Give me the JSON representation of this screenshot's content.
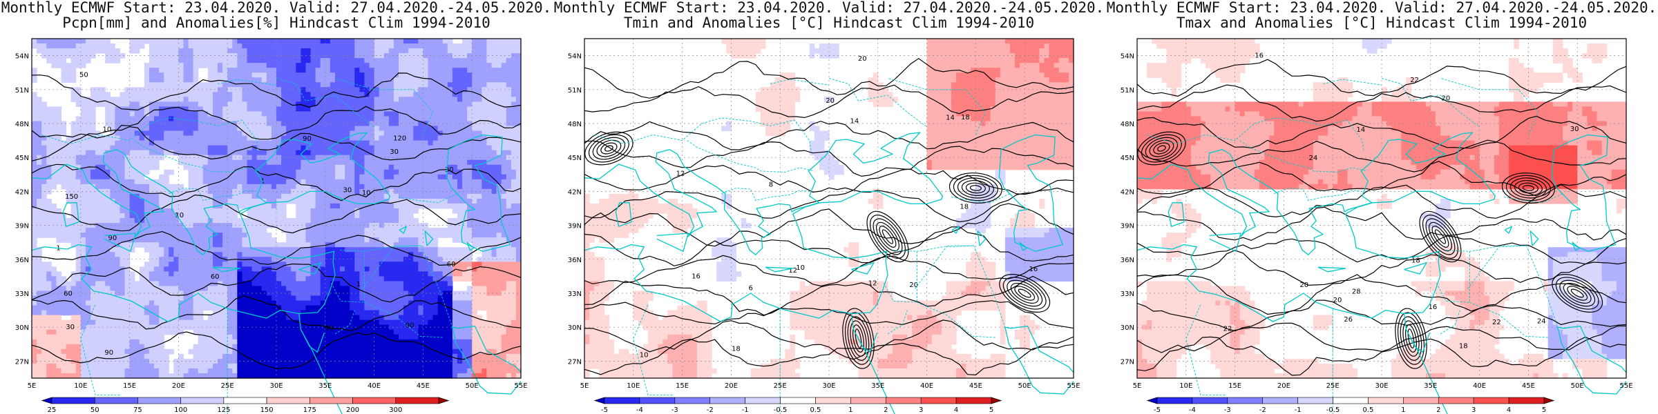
{
  "panels": [
    {
      "title_line1": "Monthly ECMWF Start: 23.04.2020. Valid: 27.04.2020.-24.05.2020.",
      "title_line2": "Pcpn[mm] and Anomalies[%] Hindcast Clim 1994-2010",
      "variable": "precipitation",
      "colorbar": {
        "labels": [
          "25",
          "50",
          "75",
          "100",
          "125",
          "150",
          "175",
          "200",
          "300"
        ],
        "colors": [
          "#0000c8",
          "#2828f0",
          "#6464ff",
          "#a0a0ff",
          "#d0d0ff",
          "#ffffff",
          "#ffd0d0",
          "#ffa0a0",
          "#ff6464",
          "#e02020",
          "#a00000"
        ]
      },
      "contour_labels": [
        "60",
        "30",
        "60",
        "90",
        "30",
        "60",
        "90",
        "10",
        "10",
        "30",
        "90",
        "60",
        "30",
        "50",
        "10",
        "1",
        "1",
        "1",
        "150",
        "120",
        "90"
      ]
    },
    {
      "title_line1": "Monthly ECMWF Start: 23.04.2020. Valid: 27.04.2020.-24.05.2020.",
      "title_line2": "Tmin and Anomalies [°C] Hindcast Clim 1994-2010",
      "variable": "tmin",
      "colorbar": {
        "labels": [
          "-5",
          "-4",
          "-3",
          "-2",
          "-1",
          "-0.5",
          "0.5",
          "1",
          "2",
          "3",
          "4",
          "5"
        ],
        "colors": [
          "#0000c8",
          "#2828f0",
          "#5050ff",
          "#8080ff",
          "#b0b0ff",
          "#d8d8ff",
          "#ffffff",
          "#ffd8d8",
          "#ffb0b0",
          "#ff8080",
          "#ff5050",
          "#e02020",
          "#a00000"
        ]
      },
      "contour_labels": [
        "8",
        "10",
        "12",
        "14",
        "16",
        "18",
        "20",
        "6",
        "10",
        "12",
        "14",
        "18",
        "20",
        "12",
        "16",
        "18",
        "20"
      ]
    },
    {
      "title_line1": "Monthly ECMWF Start: 23.04.2020. Valid: 27.04.2020.-24.05.2020.",
      "title_line2": "Tmax and Anomalies [°C] Hindcast Clim 1994-2010",
      "variable": "tmax",
      "colorbar": {
        "labels": [
          "-5",
          "-4",
          "-3",
          "-2",
          "-1",
          "-0.5",
          "0.5",
          "1",
          "2",
          "3",
          "4",
          "5"
        ],
        "colors": [
          "#0000c8",
          "#2828f0",
          "#5050ff",
          "#8080ff",
          "#b0b0ff",
          "#d8d8ff",
          "#ffffff",
          "#ffd8d8",
          "#ffb0b0",
          "#ff8080",
          "#ff5050",
          "#e02020",
          "#a00000"
        ]
      },
      "contour_labels": [
        "16",
        "18",
        "20",
        "22",
        "24",
        "14",
        "16",
        "18",
        "20",
        "22",
        "24",
        "26",
        "28",
        "30",
        "20",
        "22"
      ]
    }
  ],
  "lat_labels": [
    "54N",
    "51N",
    "48N",
    "45N",
    "42N",
    "39N",
    "36N",
    "33N",
    "30N",
    "27N"
  ],
  "lon_labels": [
    "5E",
    "10E",
    "15E",
    "20E",
    "25E",
    "30E",
    "35E",
    "40E",
    "45E",
    "50E",
    "55E"
  ],
  "colors": {
    "contour": "#000000",
    "coast": "#00c8c8",
    "grid": "#888888"
  }
}
